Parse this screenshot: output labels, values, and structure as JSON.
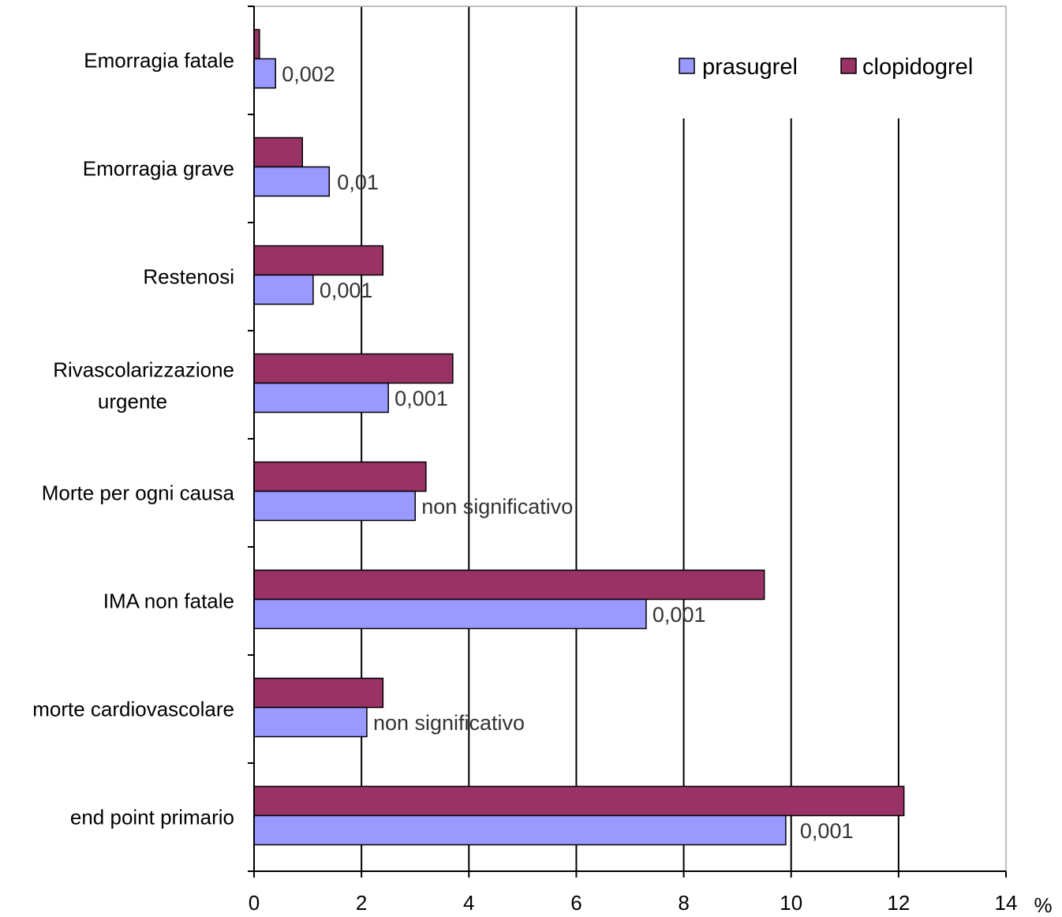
{
  "chart_data": {
    "type": "bar",
    "orientation": "horizontal",
    "categories": [
      [
        "Emorragia fatale"
      ],
      [
        "Emorragia grave"
      ],
      [
        "Restenosi"
      ],
      [
        "Rivascolarizzazione",
        "urgente"
      ],
      [
        "Morte per ogni causa"
      ],
      [
        "IMA non fatale"
      ],
      [
        "morte cardiovascolare"
      ],
      [
        "end point primario"
      ]
    ],
    "series": [
      {
        "name": "prasugrel",
        "color": "#9999ff",
        "values": [
          0.4,
          1.4,
          1.1,
          2.5,
          3.0,
          7.3,
          2.1,
          9.9
        ]
      },
      {
        "name": "clopidogrel",
        "color": "#993366",
        "values": [
          0.1,
          0.9,
          2.4,
          3.7,
          3.2,
          9.5,
          2.4,
          12.1
        ]
      }
    ],
    "annotations": [
      "0,002",
      "0,01",
      "0,001",
      "0,001",
      "non significativo",
      "0,001",
      "non significativo",
      "0,001"
    ],
    "xlim": [
      0,
      14
    ],
    "xticks": [
      "0",
      "2",
      "4",
      "6",
      "8",
      "10",
      "12",
      "14"
    ],
    "xunit": "%",
    "grid": "vertical",
    "legend": "top-right"
  }
}
